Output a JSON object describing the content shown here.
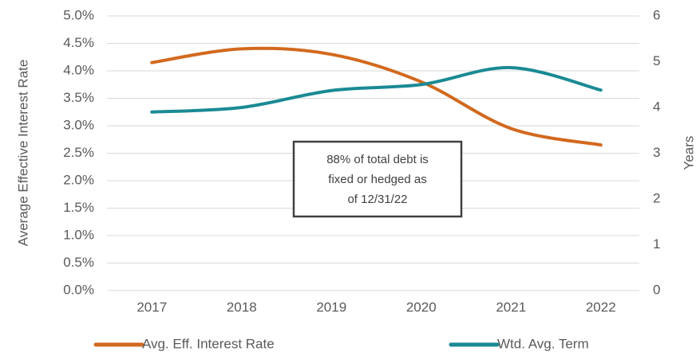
{
  "chart_data": {
    "type": "line",
    "categories": [
      "2017",
      "2018",
      "2019",
      "2020",
      "2021",
      "2022"
    ],
    "series": [
      {
        "name": "Avg. Eff. Interest Rate",
        "color": "#d2691e",
        "values": [
          4.15,
          4.4,
          4.3,
          3.8,
          2.95,
          2.65
        ]
      },
      {
        "name": "Wtd. Avg. Term",
        "color": "#1a8a94",
        "values": [
          3.9,
          4.0,
          4.37,
          4.5,
          4.87,
          4.38
        ],
        "axis": "y2"
      }
    ],
    "y_label": "Average Effective Interest Rate",
    "y2_label": "Years",
    "ylim": [
      0,
      5
    ],
    "yticks": [
      {
        "value": 0,
        "label": "0.0%"
      },
      {
        "value": 0.5,
        "label": "0.5%"
      },
      {
        "value": 1,
        "label": "1.0%"
      },
      {
        "value": 1.5,
        "label": "1.5%"
      },
      {
        "value": 2,
        "label": "2.0%"
      },
      {
        "value": 2.5,
        "label": "2.5%"
      },
      {
        "value": 3,
        "label": "3.0%"
      },
      {
        "value": 3.5,
        "label": "3.5%"
      },
      {
        "value": 4,
        "label": "4.0%"
      },
      {
        "value": 4.5,
        "label": "4.5%"
      },
      {
        "value": 5,
        "label": "5.0%"
      }
    ],
    "y2lim": [
      0,
      6
    ],
    "y2ticks": [
      0,
      1,
      2,
      3,
      4,
      5,
      6
    ],
    "annotation": [
      "88% of total debt is",
      "fixed or hedged as",
      "of 12/31/22"
    ],
    "grid": true,
    "legend": "bottom"
  }
}
